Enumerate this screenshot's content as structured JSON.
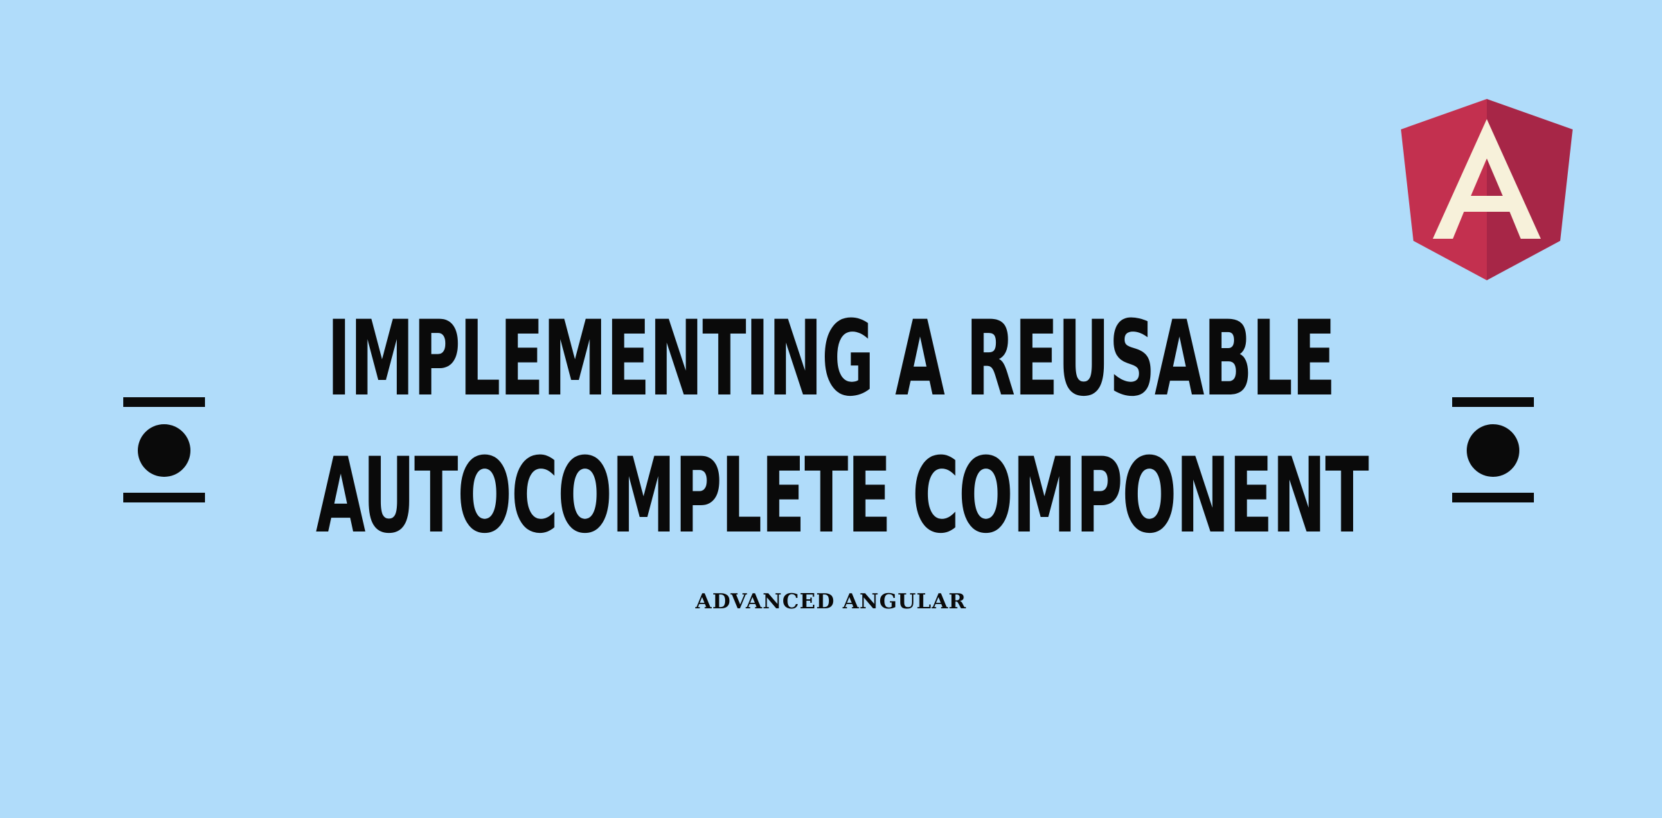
{
  "title": {
    "line1": "IMPLEMENTING A REUSABLE",
    "line2": "AUTOCOMPLETE COMPONENT"
  },
  "subtitle": "ADVANCED ANGULAR",
  "logo": {
    "icon": "angular-logo-icon",
    "letter": "A"
  },
  "ornaments": [
    "bar-circle-bar-icon",
    "bar-circle-bar-icon"
  ],
  "colors": {
    "background": "#b0dcfa",
    "text": "#0a0a0a",
    "logo_left": "#c3304f",
    "logo_right": "#a72647",
    "logo_letter": "#f7f1da"
  }
}
